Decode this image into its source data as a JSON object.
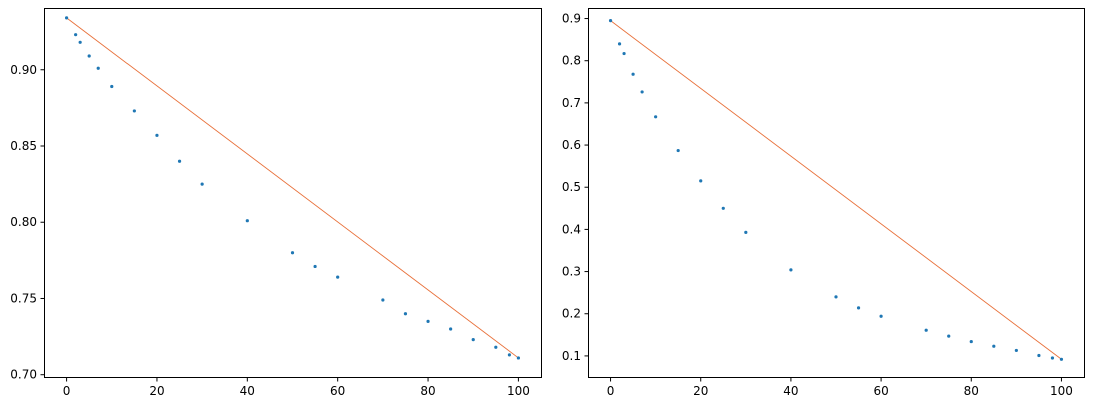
{
  "chart_data": [
    {
      "type": "scatter",
      "title": "",
      "xlabel": "",
      "ylabel": "",
      "xlim": [
        -5,
        105
      ],
      "ylim": [
        0.6985,
        0.9405
      ],
      "xticks": [
        0,
        20,
        40,
        60,
        80,
        100
      ],
      "yticks": [
        0.7,
        0.75,
        0.8,
        0.85,
        0.9
      ],
      "ytick_labels": [
        "0.70",
        "0.75",
        "0.80",
        "0.85",
        "0.90"
      ],
      "grid": false,
      "series": [
        {
          "kind": "scatter",
          "color": "#1f77b4",
          "x": [
            0,
            2,
            3,
            5,
            7,
            10,
            15,
            20,
            25,
            30,
            40,
            50,
            55,
            60,
            70,
            75,
            80,
            85,
            90,
            95,
            98,
            100
          ],
          "y": [
            0.934,
            0.923,
            0.918,
            0.909,
            0.901,
            0.889,
            0.873,
            0.857,
            0.84,
            0.825,
            0.801,
            0.78,
            0.771,
            0.764,
            0.749,
            0.74,
            0.735,
            0.73,
            0.723,
            0.718,
            0.713,
            0.711
          ]
        },
        {
          "kind": "line",
          "color": "#e8703a",
          "x": [
            0,
            100
          ],
          "y": [
            0.934,
            0.711
          ]
        }
      ]
    },
    {
      "type": "scatter",
      "title": "",
      "xlabel": "",
      "ylabel": "",
      "xlim": [
        -5,
        105
      ],
      "ylim": [
        0.05,
        0.925
      ],
      "xticks": [
        0,
        20,
        40,
        60,
        80,
        100
      ],
      "yticks": [
        0.1,
        0.2,
        0.3,
        0.4,
        0.5,
        0.6,
        0.7,
        0.8,
        0.9
      ],
      "ytick_labels": [
        "0.1",
        "0.2",
        "0.3",
        "0.4",
        "0.5",
        "0.6",
        "0.7",
        "0.8",
        "0.9"
      ],
      "grid": false,
      "series": [
        {
          "kind": "scatter",
          "color": "#1f77b4",
          "x": [
            0,
            2,
            3,
            5,
            7,
            10,
            15,
            20,
            25,
            30,
            40,
            50,
            55,
            60,
            70,
            75,
            80,
            85,
            90,
            95,
            98,
            100
          ],
          "y": [
            0.895,
            0.84,
            0.817,
            0.768,
            0.726,
            0.667,
            0.587,
            0.515,
            0.45,
            0.393,
            0.304,
            0.24,
            0.214,
            0.194,
            0.161,
            0.147,
            0.134,
            0.123,
            0.113,
            0.101,
            0.095,
            0.092
          ]
        },
        {
          "kind": "line",
          "color": "#e8703a",
          "x": [
            0,
            100
          ],
          "y": [
            0.895,
            0.092
          ]
        }
      ]
    }
  ]
}
